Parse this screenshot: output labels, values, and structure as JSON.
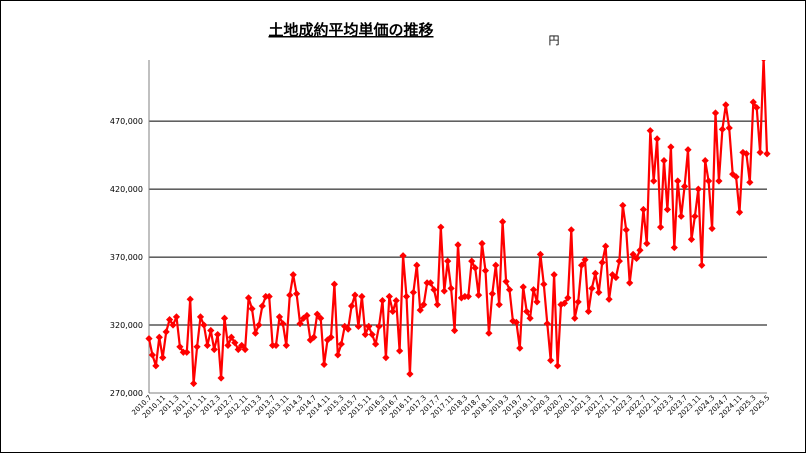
{
  "chart_data": {
    "type": "line",
    "title": "土地成約平均単価の推移",
    "unit_label": "円",
    "xlabel": "",
    "ylabel": "",
    "ylim": [
      270000,
      515000
    ],
    "yticks": [
      270000,
      320000,
      370000,
      420000,
      470000
    ],
    "ytick_labels": [
      "270,000",
      "320,000",
      "370,000",
      "420,000",
      "470,000"
    ],
    "grid": true,
    "legend": "none",
    "colors": {
      "series": "#ff0000",
      "grid": "#000000",
      "axis": "#808080"
    },
    "x_start": "2010.7",
    "x_end": "2025.5",
    "x_tick_labels": [
      "2010.7",
      "2010.11",
      "2011.3",
      "2011.7",
      "2011.11",
      "2012.3",
      "2012.7",
      "2012.11",
      "2013.3",
      "2013.7",
      "2013.11",
      "2014.3",
      "2014.7",
      "2014.11",
      "2015.3",
      "2015.7",
      "2015.11",
      "2016.3",
      "2016.7",
      "2016.11",
      "2017.3",
      "2017.7",
      "2017.11",
      "2018.3",
      "2018.7",
      "2018.11",
      "2019.3",
      "2019.7",
      "2019.11",
      "2020.3",
      "2020.7",
      "2020.11",
      "2021.3",
      "2021.7",
      "2021.11",
      "2022.3",
      "2022.7",
      "2022.11",
      "2023.3",
      "2023.7",
      "2023.11",
      "2024.3",
      "2024.7",
      "2024.11",
      "2025.3",
      "2025.5"
    ],
    "series": [
      {
        "values": [
          310000,
          298000,
          290000,
          311000,
          296000,
          315000,
          324000,
          320000,
          326000,
          304000,
          300000,
          300000,
          339000,
          277000,
          304000,
          326000,
          320000,
          305000,
          316000,
          302000,
          313000,
          281000,
          325000,
          305000,
          311000,
          307000,
          302000,
          305000,
          302000,
          340000,
          332000,
          314000,
          320000,
          334000,
          341000,
          341000,
          305000,
          305000,
          326000,
          321000,
          305000,
          342000,
          357000,
          343000,
          321000,
          325000,
          327000,
          309000,
          311000,
          328000,
          325000,
          291000,
          309000,
          311000,
          350000,
          298000,
          306000,
          319000,
          317000,
          334000,
          342000,
          319000,
          341000,
          313000,
          319000,
          313000,
          306000,
          319000,
          338000,
          296000,
          341000,
          330000,
          338000,
          301000,
          371000,
          341000,
          284000,
          344000,
          364000,
          331000,
          335000,
          351000,
          351000,
          346000,
          335000,
          392000,
          345000,
          367000,
          347000,
          316000,
          379000,
          340000,
          341000,
          341000,
          367000,
          362000,
          342000,
          380000,
          360000,
          314000,
          343000,
          364000,
          335000,
          396000,
          352000,
          346000,
          323000,
          322000,
          303000,
          348000,
          330000,
          325000,
          346000,
          337000,
          372000,
          350000,
          321000,
          294000,
          357000,
          290000,
          335000,
          336000,
          340000,
          390000,
          325000,
          337000,
          364000,
          368000,
          330000,
          347000,
          358000,
          344000,
          366000,
          378000,
          339000,
          357000,
          355000,
          367000,
          408000,
          390000,
          351000,
          372000,
          369000,
          375000,
          405000,
          380000,
          463000,
          426000,
          457000,
          392000,
          441000,
          405000,
          451000,
          377000,
          426000,
          400000,
          422000,
          449000,
          383000,
          400000,
          420000,
          364000,
          441000,
          426000,
          391000,
          476000,
          426000,
          464000,
          482000,
          465000,
          431000,
          429000,
          403000,
          447000,
          446000,
          425000,
          484000,
          480000,
          447000,
          516000,
          446000
        ]
      }
    ]
  }
}
